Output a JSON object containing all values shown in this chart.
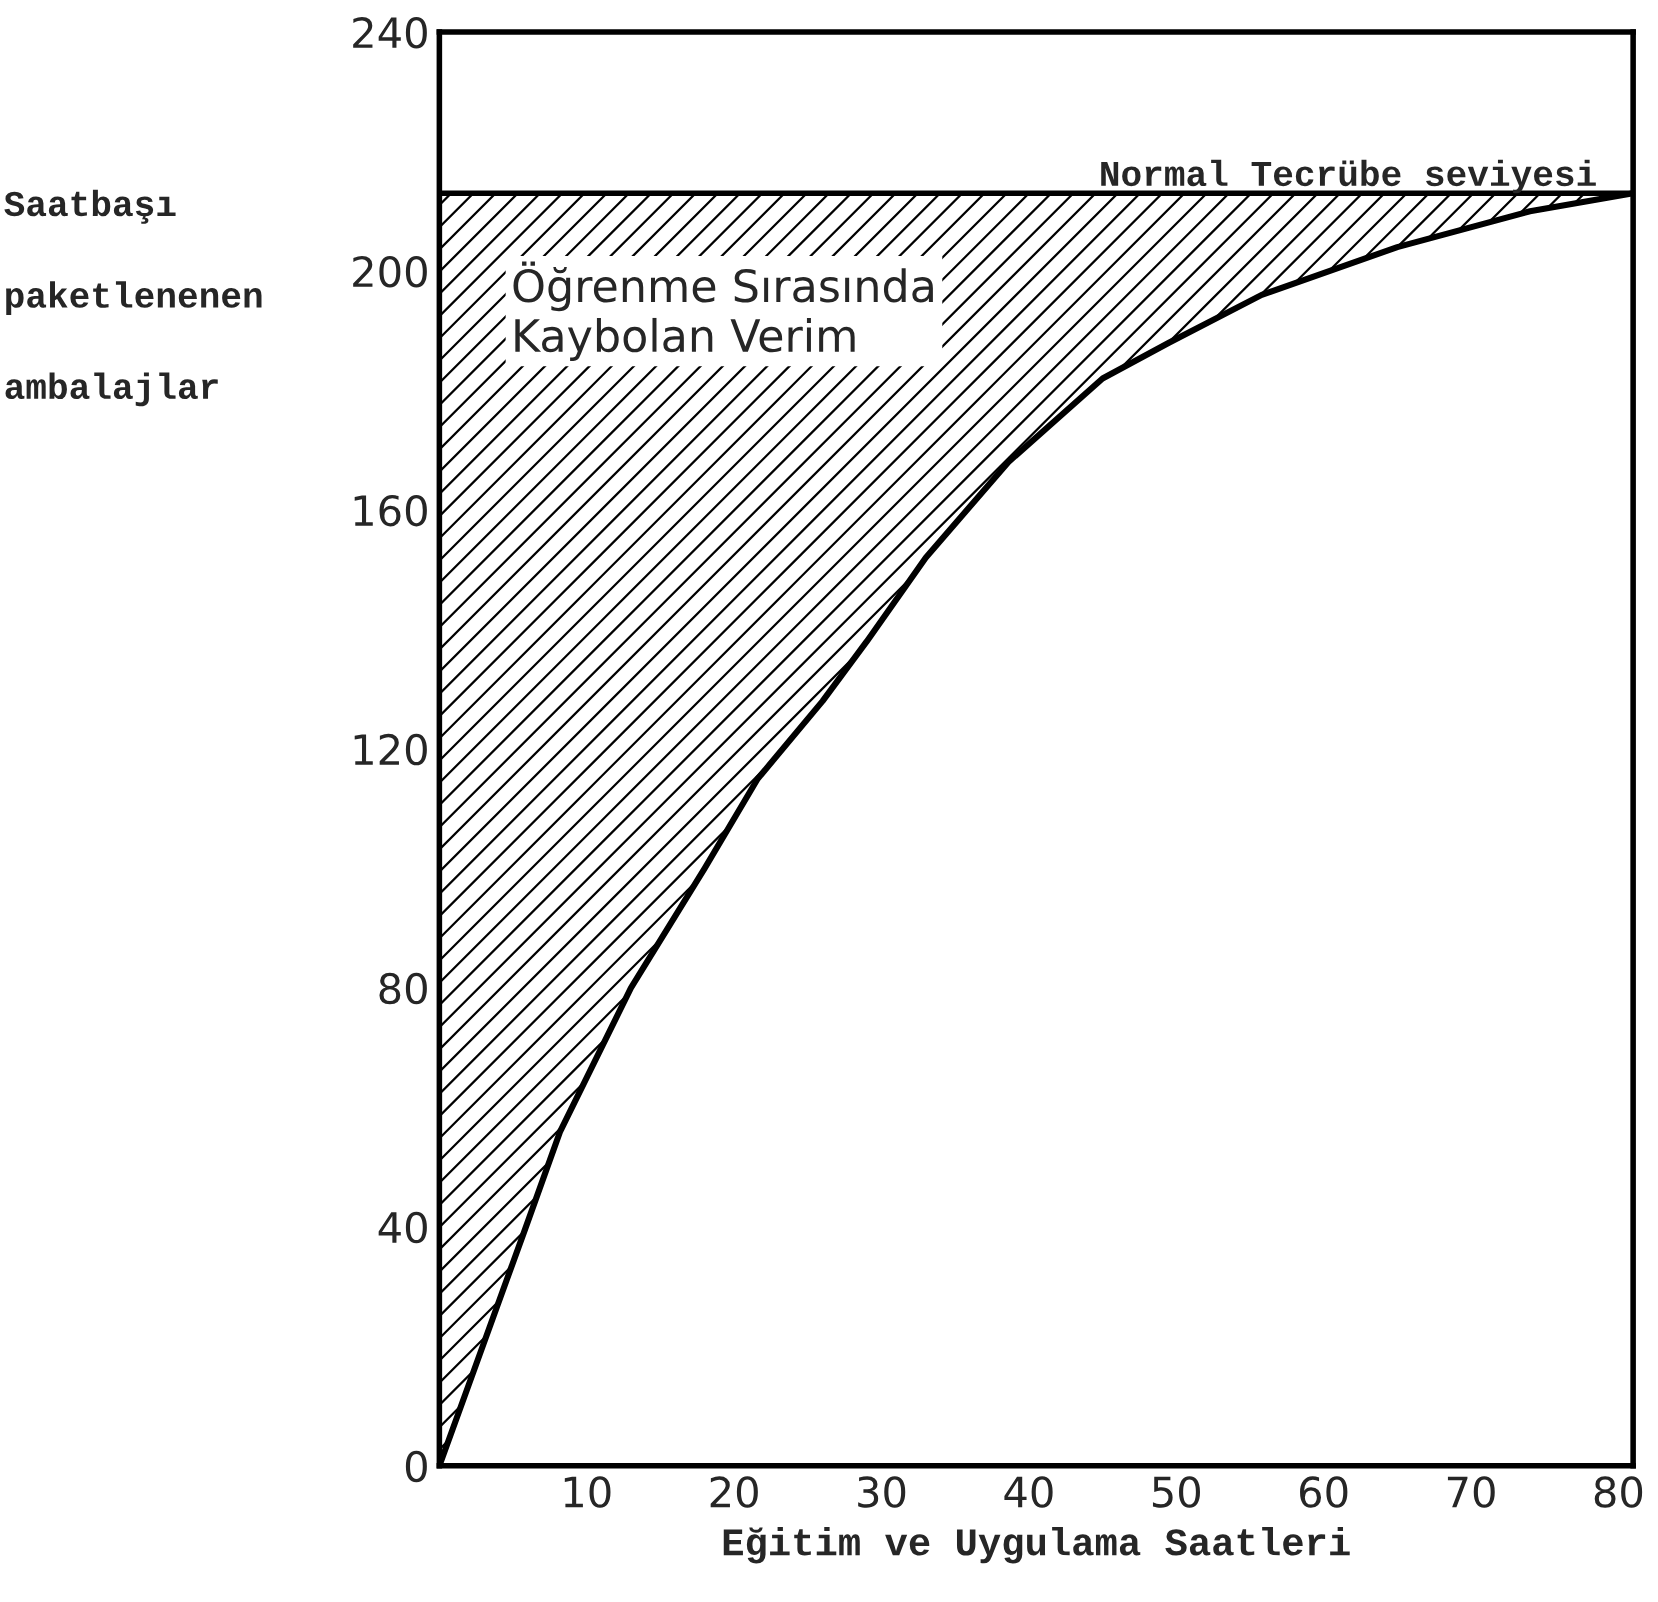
{
  "chart_data": {
    "type": "line",
    "xlabel": "Eğitim ve Uygulama Saatleri",
    "ylabel": "Saatbaşı\npaketlenenen\nambalajlar",
    "x": [
      0,
      5.8,
      8.2,
      13,
      18,
      21.6,
      26,
      29,
      33,
      38.6,
      45,
      49.5,
      55.8,
      65,
      74,
      81
    ],
    "series": [
      {
        "color": "#000000",
        "values": [
          0,
          39.5,
          56,
          80,
          100,
          115,
          128,
          138,
          152,
          168,
          182,
          188,
          196,
          204,
          210,
          213
        ],
        "lower": [
          0,
          39.5,
          56,
          80,
          100,
          115,
          128,
          138,
          152,
          168,
          182,
          188,
          196,
          204,
          210,
          213
        ],
        "upper": [
          213,
          213,
          213,
          213,
          213,
          213,
          213,
          213,
          213,
          213,
          213,
          213,
          213,
          213,
          213,
          213
        ]
      }
    ],
    "ref_lines": [
      {
        "axis": "y",
        "value": 213,
        "label": "Normal Tecrübe seviyesi",
        "color": "#000000",
        "line_style": "solid"
      }
    ],
    "annotations": [
      "Öğrenme Sırasında\nKaybolan Verim"
    ],
    "xlim": [
      0,
      81
    ],
    "ylim": [
      0,
      240
    ],
    "xticks": [
      10,
      20,
      30,
      40,
      50,
      60,
      70,
      80
    ],
    "yticks": [
      0,
      40,
      80,
      120,
      160,
      200,
      240
    ],
    "grid": false,
    "legend": false,
    "marker": "none",
    "line_style": "solid"
  }
}
